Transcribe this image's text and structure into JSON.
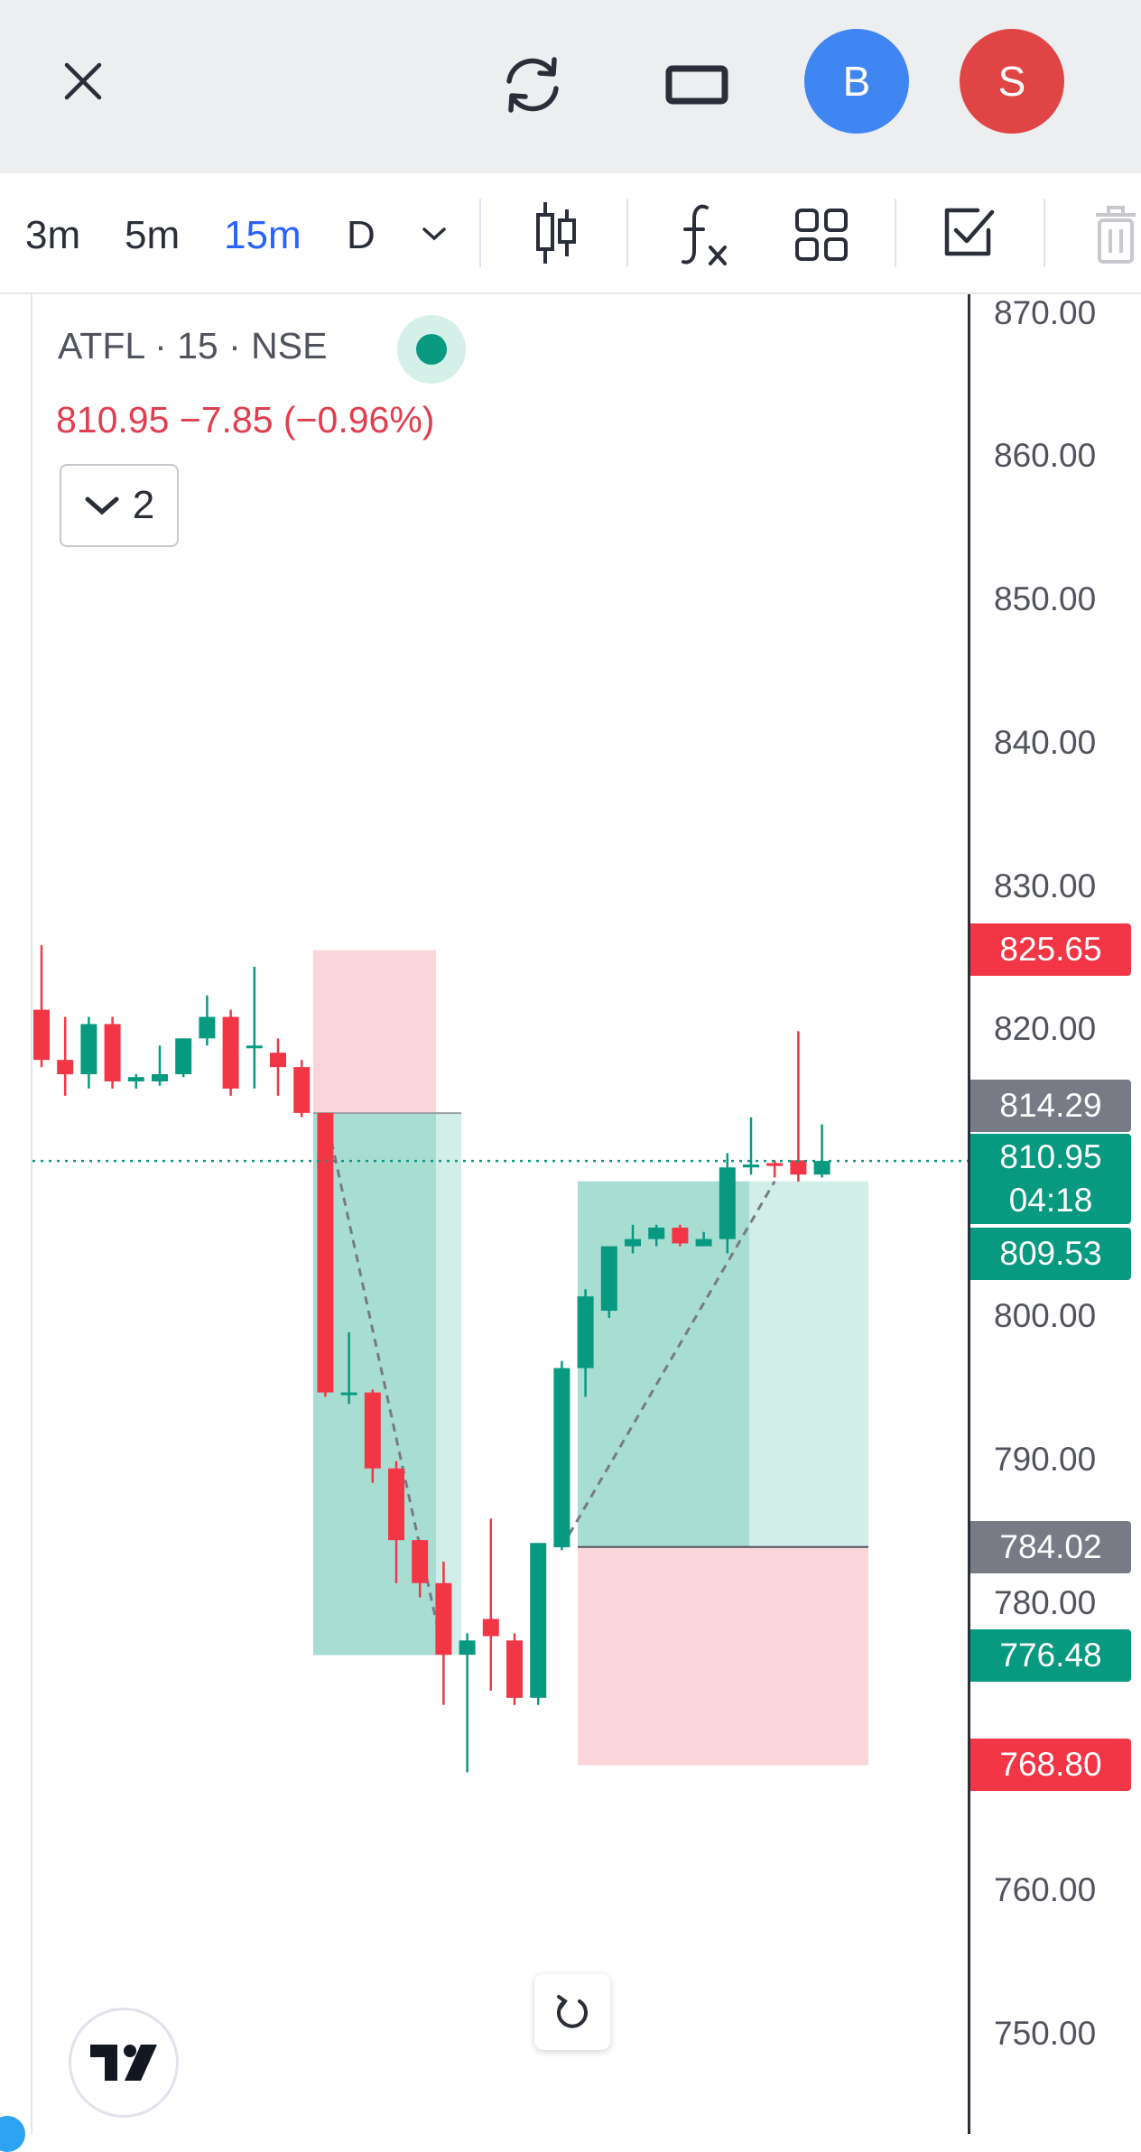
{
  "top_bar": {
    "close_icon": "close-icon",
    "refresh_icon": "refresh-icon",
    "window_icon": "fullscreen-icon",
    "avatar_b": {
      "letter": "B",
      "color": "#3f86f2"
    },
    "avatar_s": {
      "letter": "S",
      "color": "#e04545"
    }
  },
  "toolbar": {
    "intervals": [
      "3m",
      "5m",
      "15m",
      "D"
    ],
    "active_interval": "15m",
    "icons": [
      "chevron-down-icon",
      "candles-icon",
      "indicators-icon",
      "layout-grid-icon",
      "checkbox-icon",
      "trash-icon"
    ]
  },
  "legend": {
    "symbol": "ATFL · 15 · NSE",
    "price_change": "810.95  −7.85 (−0.96%)",
    "collapse_count": "2"
  },
  "price_scale": {
    "ticks": [
      "870.00",
      "860.00",
      "850.00",
      "840.00",
      "830.00",
      "820.00",
      "800.00",
      "790.00",
      "780.00",
      "760.00",
      "750.00"
    ],
    "labels": {
      "red_top": "825.65",
      "gray_top": "814.29",
      "last_price": "810.95",
      "countdown": "04:18",
      "green_mid": "809.53",
      "gray_bottom": "784.02",
      "green_bottom": "776.48",
      "red_bottom": "768.80"
    }
  },
  "colors": {
    "up": "#089981",
    "down": "#f23645",
    "target_zone": "#a8ddd2",
    "stop_zone": "#fad6da"
  },
  "chart_data": {
    "type": "candlestick",
    "symbol": "ATFL",
    "interval": "15",
    "exchange": "NSE",
    "y_range": [
      748,
      872
    ],
    "last_price": 810.95,
    "candles": [
      {
        "o": 821.5,
        "h": 826.0,
        "l": 817.5,
        "c": 818.0
      },
      {
        "o": 818.0,
        "h": 821.0,
        "l": 815.5,
        "c": 817.0
      },
      {
        "o": 817.0,
        "h": 821.0,
        "l": 816.0,
        "c": 820.5
      },
      {
        "o": 820.5,
        "h": 821.0,
        "l": 816.0,
        "c": 816.5
      },
      {
        "o": 816.5,
        "h": 817.0,
        "l": 816.0,
        "c": 816.8
      },
      {
        "o": 816.5,
        "h": 819.0,
        "l": 816.2,
        "c": 817.0
      },
      {
        "o": 817.0,
        "h": 819.5,
        "l": 816.8,
        "c": 819.5
      },
      {
        "o": 819.5,
        "h": 822.5,
        "l": 819.0,
        "c": 821.0
      },
      {
        "o": 821.0,
        "h": 821.5,
        "l": 815.5,
        "c": 816.0
      },
      {
        "o": 819.0,
        "h": 824.5,
        "l": 816.0,
        "c": 819.0
      },
      {
        "o": 818.5,
        "h": 819.5,
        "l": 815.5,
        "c": 817.5
      },
      {
        "o": 817.5,
        "h": 818.0,
        "l": 814.0,
        "c": 814.3
      },
      {
        "o": 814.3,
        "h": 814.3,
        "l": 794.5,
        "c": 794.8
      },
      {
        "o": 794.8,
        "h": 799.0,
        "l": 794.0,
        "c": 794.8
      },
      {
        "o": 794.8,
        "h": 795.0,
        "l": 788.5,
        "c": 789.5
      },
      {
        "o": 789.5,
        "h": 790.0,
        "l": 781.5,
        "c": 784.5
      },
      {
        "o": 784.5,
        "h": 784.5,
        "l": 780.5,
        "c": 781.5
      },
      {
        "o": 781.5,
        "h": 783.0,
        "l": 773.0,
        "c": 776.5
      },
      {
        "o": 776.5,
        "h": 778.0,
        "l": 768.3,
        "c": 777.5
      },
      {
        "o": 779.0,
        "h": 786.0,
        "l": 774.0,
        "c": 777.8
      },
      {
        "o": 777.5,
        "h": 778.0,
        "l": 773.0,
        "c": 773.5
      },
      {
        "o": 773.5,
        "h": 784.3,
        "l": 773.0,
        "c": 784.3
      },
      {
        "o": 784.0,
        "h": 797.0,
        "l": 783.8,
        "c": 796.5
      },
      {
        "o": 796.5,
        "h": 802.0,
        "l": 794.5,
        "c": 801.5
      },
      {
        "o": 800.5,
        "h": 805.0,
        "l": 800.0,
        "c": 805.0
      },
      {
        "o": 805.0,
        "h": 806.5,
        "l": 804.5,
        "c": 805.5
      },
      {
        "o": 805.5,
        "h": 806.5,
        "l": 805.0,
        "c": 806.3
      },
      {
        "o": 806.3,
        "h": 806.5,
        "l": 805.0,
        "c": 805.2
      },
      {
        "o": 805.0,
        "h": 806.0,
        "l": 805.0,
        "c": 805.5
      },
      {
        "o": 805.5,
        "h": 811.5,
        "l": 804.5,
        "c": 810.5
      },
      {
        "o": 810.5,
        "h": 814.0,
        "l": 810.0,
        "c": 810.7
      },
      {
        "o": 810.8,
        "h": 811.0,
        "l": 809.8,
        "c": 810.6
      },
      {
        "o": 811.0,
        "h": 820.0,
        "l": 809.5,
        "c": 810.0
      },
      {
        "o": 810.0,
        "h": 813.5,
        "l": 809.8,
        "c": 810.95
      }
    ],
    "positions": [
      {
        "kind": "short",
        "entry": 814.29,
        "stop": 825.65,
        "target": 776.48
      },
      {
        "kind": "long",
        "entry": 784.02,
        "stop": 768.8,
        "target": 809.53
      }
    ]
  }
}
